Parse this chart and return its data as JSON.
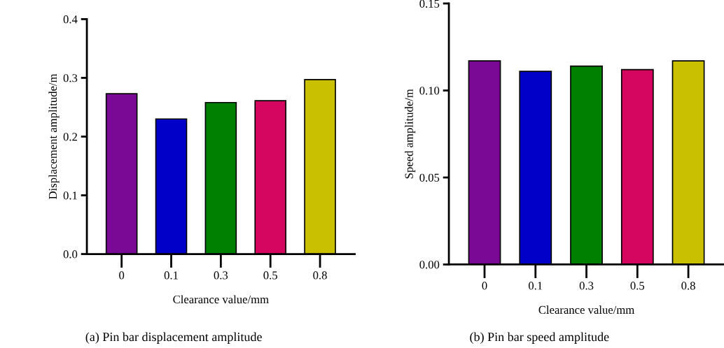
{
  "chart_data": [
    {
      "type": "bar",
      "categories": [
        "0",
        "0.1",
        "0.3",
        "0.5",
        "0.8"
      ],
      "values": [
        0.273,
        0.23,
        0.258,
        0.261,
        0.297
      ],
      "colors": [
        "#7a0a96",
        "#0000c8",
        "#008000",
        "#d4065f",
        "#c8c000"
      ],
      "xlabel": "Clearance value/mm",
      "ylabel": "Displacement amplitude/m",
      "ylim": [
        0,
        0.4
      ],
      "yticks": [
        {
          "value": 0,
          "label": "0.0"
        },
        {
          "value": 0.1,
          "label": "0.1"
        },
        {
          "value": 0.2,
          "label": "0.2"
        },
        {
          "value": 0.3,
          "label": "0.3"
        },
        {
          "value": 0.4,
          "label": "0.4"
        }
      ],
      "annotations": [
        "(a) Pin bar displacement amplitude"
      ],
      "grid": false,
      "legend": false
    },
    {
      "type": "bar",
      "categories": [
        "0",
        "0.1",
        "0.3",
        "0.5",
        "0.8"
      ],
      "values": [
        0.117,
        0.111,
        0.114,
        0.112,
        0.117
      ],
      "colors": [
        "#7a0a96",
        "#0000c8",
        "#008000",
        "#d4065f",
        "#c8c000"
      ],
      "xlabel": "Clearance value/mm",
      "ylabel": "Speed amplitude/m",
      "ylim": [
        0,
        0.15
      ],
      "yticks": [
        {
          "value": 0,
          "label": "0.00"
        },
        {
          "value": 0.05,
          "label": "0.05"
        },
        {
          "value": 0.1,
          "label": "0.10"
        },
        {
          "value": 0.15,
          "label": "0.15"
        }
      ],
      "annotations": [
        "(b) Pin bar speed amplitude"
      ],
      "grid": false,
      "legend": false
    }
  ]
}
